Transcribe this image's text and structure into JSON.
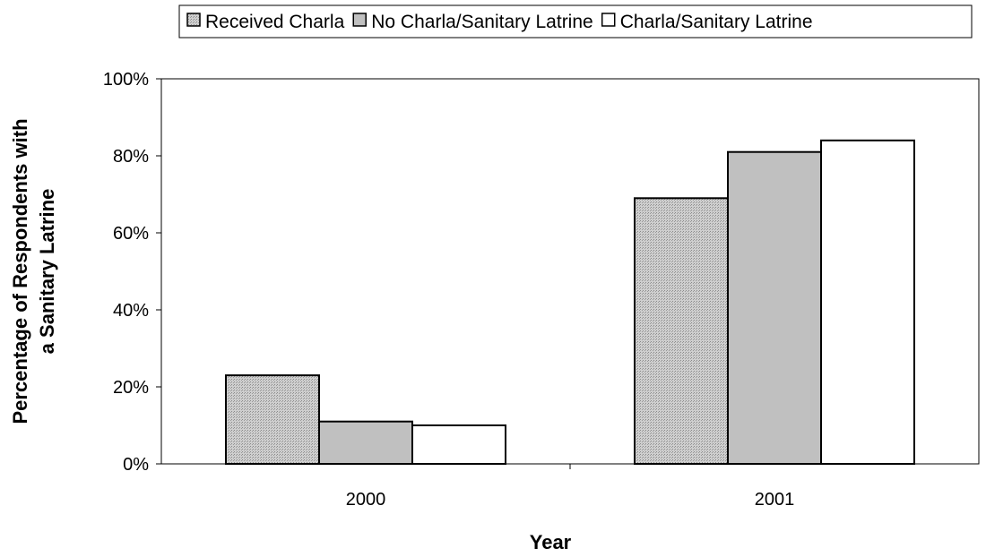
{
  "chart_data": {
    "type": "bar",
    "categories": [
      "2000",
      "2001"
    ],
    "series": [
      {
        "name": "Received Charla",
        "values": [
          23,
          69
        ],
        "color": "#c8c8c8",
        "pattern": "dotted"
      },
      {
        "name": "No Charla/Sanitary Latrine",
        "values": [
          11,
          81
        ],
        "color": "#c0c0c0",
        "pattern": "solid"
      },
      {
        "name": "Charla/Sanitary Latrine",
        "values": [
          10,
          84
        ],
        "color": "#ffffff",
        "pattern": "solid"
      }
    ],
    "xlabel": "Year",
    "ylabel": [
      "Percentage of Respondents with",
      "a Sanitary Latrine"
    ],
    "ylim": [
      0,
      100
    ],
    "yticks": [
      0,
      20,
      40,
      60,
      80,
      100
    ],
    "ytick_labels": [
      "0%",
      "20%",
      "40%",
      "60%",
      "80%",
      "100%"
    ],
    "grid": false,
    "legend_position": "top"
  }
}
